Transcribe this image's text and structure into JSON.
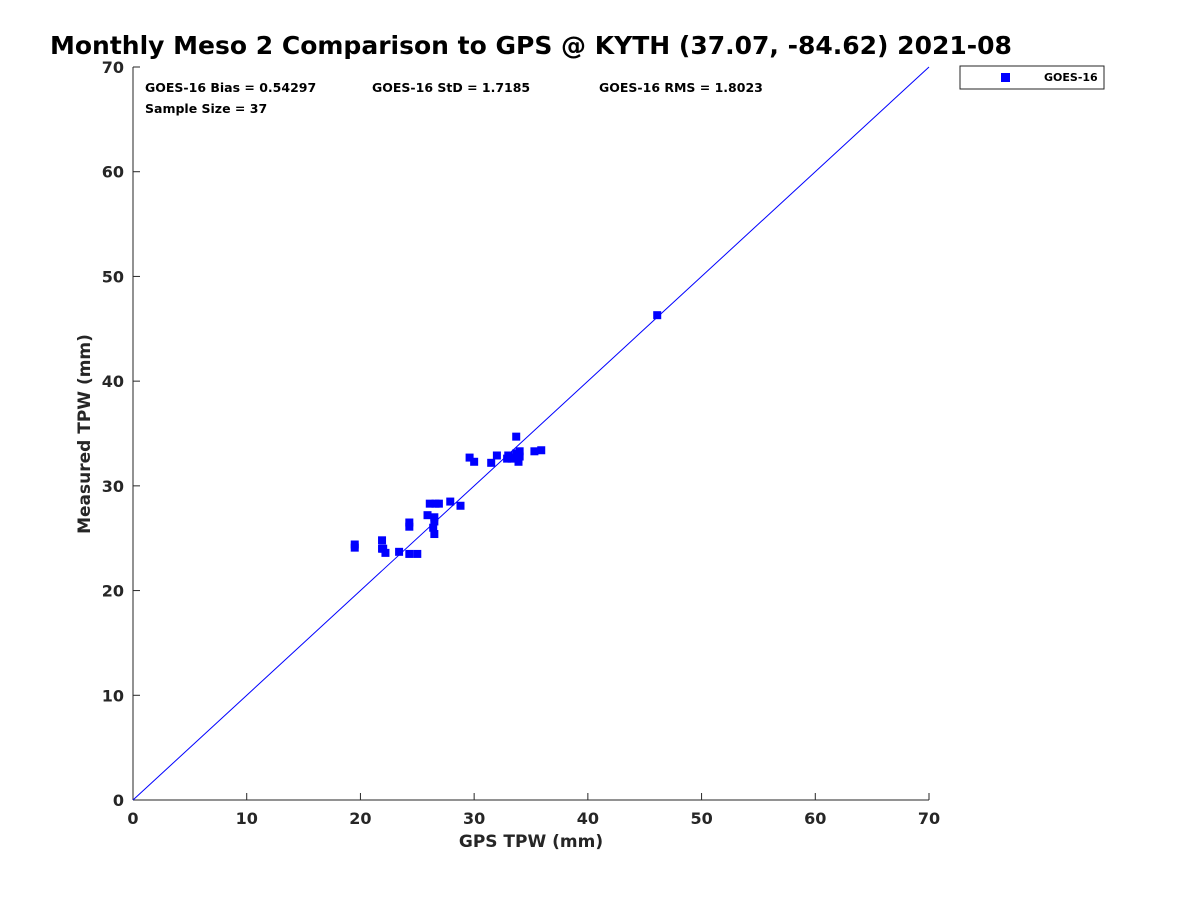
{
  "chart_data": {
    "type": "scatter",
    "title": "Monthly Meso 2 Comparison to GPS @ KYTH (37.07, -84.62) 2021-08",
    "xlabel": "GPS TPW (mm)",
    "ylabel": "Measured TPW (mm)",
    "xlim": [
      0,
      70
    ],
    "ylim": [
      0,
      70
    ],
    "xticks": [
      0,
      10,
      20,
      30,
      40,
      50,
      60,
      70
    ],
    "yticks": [
      0,
      10,
      20,
      30,
      40,
      50,
      60,
      70
    ],
    "grid": false,
    "legend_position": "outside-top-right",
    "reference_line": {
      "name": "1:1 line",
      "from": [
        0,
        0
      ],
      "to": [
        70,
        70
      ],
      "color": "#0000ff"
    },
    "stats": {
      "bias": "GOES-16 Bias = 0.54297",
      "std": "GOES-16 StD = 1.7185",
      "rms": "GOES-16 RMS = 1.8023",
      "sample_size": "Sample Size = 37"
    },
    "series": [
      {
        "name": "GOES-16",
        "color": "#0000ff",
        "marker": "square",
        "points": [
          [
            19.5,
            24.1
          ],
          [
            19.5,
            24.4
          ],
          [
            21.9,
            24.8
          ],
          [
            21.9,
            24.0
          ],
          [
            22.2,
            23.6
          ],
          [
            23.4,
            23.7
          ],
          [
            24.3,
            23.5
          ],
          [
            25.0,
            23.5
          ],
          [
            24.3,
            26.1
          ],
          [
            24.3,
            26.5
          ],
          [
            25.9,
            27.2
          ],
          [
            26.1,
            28.3
          ],
          [
            26.6,
            28.3
          ],
          [
            26.5,
            27.0
          ],
          [
            26.5,
            26.6
          ],
          [
            26.4,
            26.0
          ],
          [
            26.5,
            25.4
          ],
          [
            27.9,
            28.5
          ],
          [
            28.8,
            28.1
          ],
          [
            29.6,
            32.7
          ],
          [
            30.0,
            32.3
          ],
          [
            31.5,
            32.2
          ],
          [
            32.0,
            32.9
          ],
          [
            32.9,
            32.6
          ],
          [
            33.0,
            32.9
          ],
          [
            33.3,
            32.6
          ],
          [
            33.7,
            34.7
          ],
          [
            33.7,
            33.1
          ],
          [
            34.0,
            33.3
          ],
          [
            34.0,
            32.8
          ],
          [
            33.9,
            32.3
          ],
          [
            35.3,
            33.3
          ],
          [
            35.9,
            33.4
          ],
          [
            46.1,
            46.3
          ],
          [
            33.5,
            32.7
          ],
          [
            26.9,
            28.3
          ],
          [
            22.0,
            24.0
          ]
        ]
      }
    ]
  }
}
